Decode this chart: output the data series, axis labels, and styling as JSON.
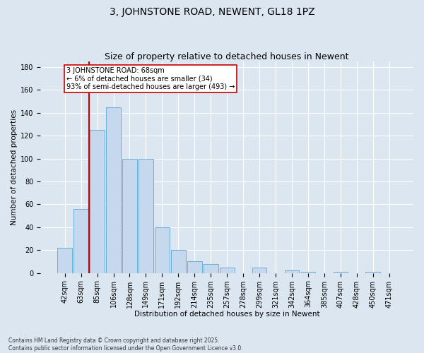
{
  "title": "3, JOHNSTONE ROAD, NEWENT, GL18 1PZ",
  "subtitle": "Size of property relative to detached houses in Newent",
  "xlabel": "Distribution of detached houses by size in Newent",
  "ylabel": "Number of detached properties",
  "categories": [
    "42sqm",
    "63sqm",
    "85sqm",
    "106sqm",
    "128sqm",
    "149sqm",
    "171sqm",
    "192sqm",
    "214sqm",
    "235sqm",
    "257sqm",
    "278sqm",
    "299sqm",
    "321sqm",
    "342sqm",
    "364sqm",
    "385sqm",
    "407sqm",
    "428sqm",
    "450sqm",
    "471sqm"
  ],
  "values": [
    22,
    56,
    125,
    145,
    100,
    100,
    40,
    20,
    10,
    8,
    5,
    0,
    5,
    0,
    2,
    1,
    0,
    1,
    0,
    1,
    0
  ],
  "bar_color": "#c5d8ee",
  "bar_edge_color": "#6baed6",
  "vline_x": 1.5,
  "vline_color": "#cc0000",
  "annotation_text": "3 JOHNSTONE ROAD: 68sqm\n← 6% of detached houses are smaller (34)\n93% of semi-detached houses are larger (493) →",
  "annotation_box_facecolor": "#ffffff",
  "annotation_box_edgecolor": "#cc0000",
  "bg_color": "#dce6f1",
  "plot_bg_color": "#dce6f1",
  "footer_line1": "Contains HM Land Registry data © Crown copyright and database right 2025.",
  "footer_line2": "Contains public sector information licensed under the Open Government Licence v3.0.",
  "ylim": [
    0,
    185
  ],
  "yticks": [
    0,
    20,
    40,
    60,
    80,
    100,
    120,
    140,
    160,
    180
  ],
  "title_fontsize": 10,
  "subtitle_fontsize": 9,
  "axis_label_fontsize": 7.5,
  "tick_fontsize": 7,
  "footer_fontsize": 5.5,
  "annot_fontsize": 7
}
